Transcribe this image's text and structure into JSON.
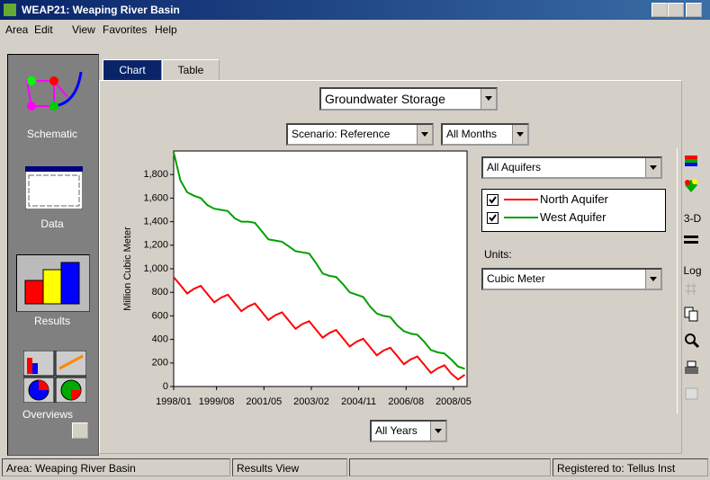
{
  "window": {
    "title": "WEAP21: Weaping River Basin"
  },
  "menu": [
    "Area",
    "Edit",
    "View",
    "Favorites",
    "Help"
  ],
  "sidebar": [
    "Schematic",
    "Data",
    "Results",
    "Overviews"
  ],
  "tabs": [
    "Chart",
    "Table"
  ],
  "variable": "Groundwater Storage",
  "scenario": "Scenario: Reference",
  "months": "All Months",
  "years": "All Years",
  "aquifers": "All Aquifers",
  "units_label": "Units:",
  "units": "Cubic Meter",
  "toolbar": [
    "3-D",
    "Log"
  ],
  "status": [
    "Area: Weaping River Basin",
    "Results View",
    "Registered to: Tellus Inst"
  ],
  "chart_data": {
    "type": "line",
    "ylabel": "Million Cubic Meter",
    "x": [
      "1998/01",
      "1998/04",
      "1998/07",
      "1998/10",
      "1999/01",
      "1999/04",
      "1999/07",
      "1999/10",
      "2000/01",
      "2000/04",
      "2000/07",
      "2000/10",
      "2001/01",
      "2001/04",
      "2001/07",
      "2001/10",
      "2002/01",
      "2002/04",
      "2002/07",
      "2002/10",
      "2003/01",
      "2003/04",
      "2003/07",
      "2003/10",
      "2004/01",
      "2004/04",
      "2004/07",
      "2004/10",
      "2005/01",
      "2005/04",
      "2005/07",
      "2005/10",
      "2006/01",
      "2006/04",
      "2006/07",
      "2006/10",
      "2007/01",
      "2007/04",
      "2007/07",
      "2007/10",
      "2008/01",
      "2008/04",
      "2008/07",
      "2008/10"
    ],
    "series": [
      {
        "name": "North Aquifer",
        "color": "#ff0000",
        "values": [
          930,
          860,
          790,
          830,
          855,
          785,
          715,
          755,
          780,
          710,
          640,
          680,
          705,
          635,
          565,
          605,
          630,
          560,
          490,
          530,
          555,
          485,
          415,
          455,
          480,
          410,
          340,
          380,
          405,
          335,
          265,
          305,
          330,
          260,
          190,
          230,
          255,
          185,
          115,
          155,
          180,
          110,
          60,
          100
        ]
      },
      {
        "name": "West Aquifer",
        "color": "#00a000",
        "values": [
          1990,
          1750,
          1650,
          1620,
          1600,
          1540,
          1510,
          1500,
          1490,
          1430,
          1400,
          1400,
          1390,
          1320,
          1250,
          1240,
          1230,
          1190,
          1150,
          1140,
          1130,
          1050,
          960,
          940,
          930,
          870,
          800,
          780,
          760,
          680,
          620,
          600,
          590,
          520,
          470,
          450,
          440,
          380,
          310,
          290,
          280,
          230,
          170,
          150
        ]
      }
    ],
    "xlim": [
      "1998/01",
      "2008/11"
    ],
    "xticks": [
      "1998/01",
      "1999/08",
      "2001/05",
      "2003/02",
      "2004/11",
      "2006/08",
      "2008/05"
    ],
    "ylim": [
      0,
      2000
    ],
    "yticks": [
      0,
      200,
      400,
      600,
      800,
      {
        "value": 1000,
        "label": "1,000"
      },
      {
        "value": 1200,
        "label": "1,200"
      },
      {
        "value": 1400,
        "label": "1,400"
      },
      {
        "value": 1600,
        "label": "1,600"
      },
      {
        "value": 1800,
        "label": "1,800"
      }
    ]
  }
}
